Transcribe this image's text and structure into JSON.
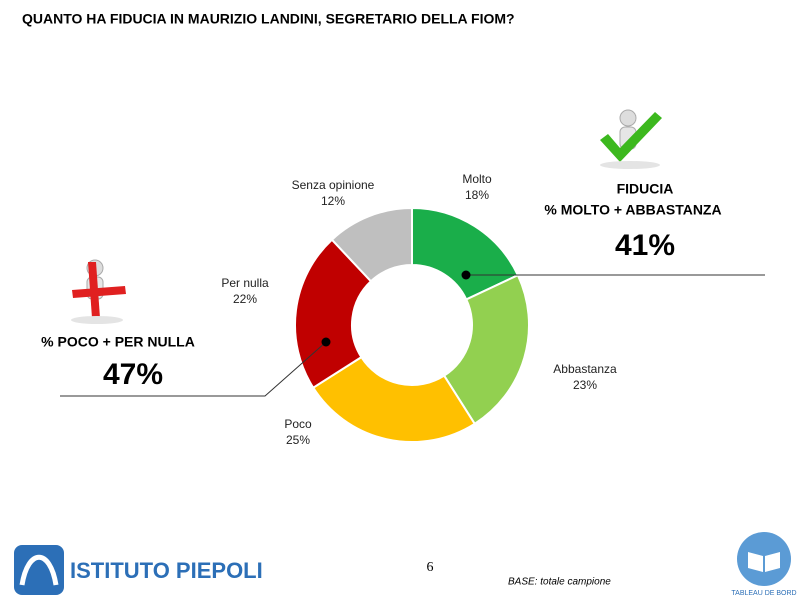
{
  "chart_data": {
    "type": "donut",
    "title": "QUANTO HA FIDUCIA IN MAURIZIO LANDINI, SEGRETARIO DELLA FIOM?",
    "categories": [
      "Molto",
      "Abbastanza",
      "Poco",
      "Per nulla",
      "Senza opinione"
    ],
    "values": [
      18,
      23,
      25,
      22,
      12
    ],
    "value_labels": [
      "18%",
      "23%",
      "25%",
      "22%",
      "12%"
    ],
    "colors": [
      "#1aae4a",
      "#92d050",
      "#ffc000",
      "#c00000",
      "#bfbfbf"
    ],
    "annotations": {
      "trust_title": "FIDUCIA",
      "trust_label": "% MOLTO + ABBASTANZA",
      "trust_value": "41%",
      "distrust_label": "% POCO + PER NULLA",
      "distrust_value": "47%"
    }
  },
  "footer": {
    "logo": "ISTITUTO PIEPOLI",
    "page": "6",
    "base": "BASE: totale campione",
    "badge": "TABLEAU DE BORD"
  }
}
